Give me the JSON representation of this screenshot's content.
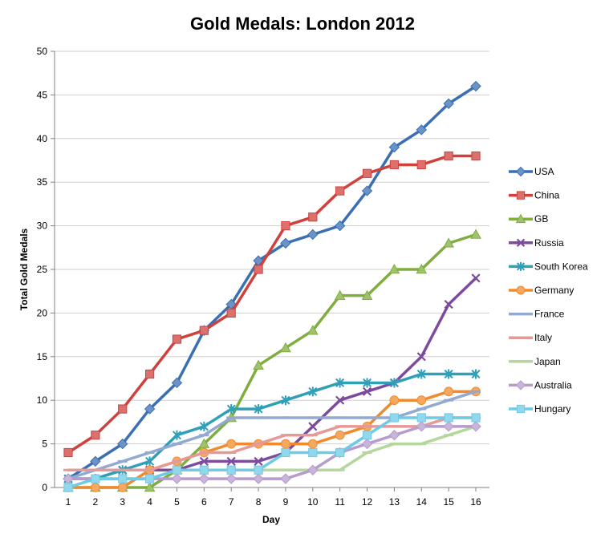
{
  "chart_data": {
    "type": "line",
    "title": "Gold Medals: London 2012",
    "xlabel": "Day",
    "ylabel": "Total Gold Medals",
    "x": [
      1,
      2,
      3,
      4,
      5,
      6,
      7,
      8,
      9,
      10,
      11,
      12,
      13,
      14,
      15,
      16
    ],
    "xlim": [
      1,
      16
    ],
    "ylim": [
      0,
      50
    ],
    "y_ticks": [
      0,
      5,
      10,
      15,
      20,
      25,
      30,
      35,
      40,
      45,
      50
    ],
    "grid": true,
    "legend_position": "right",
    "series": [
      {
        "name": "USA",
        "color": "#3a6fb3",
        "marker": "diamond",
        "values": [
          1,
          3,
          5,
          9,
          12,
          18,
          21,
          26,
          28,
          29,
          30,
          34,
          39,
          41,
          44,
          46
        ]
      },
      {
        "name": "China",
        "color": "#d0403c",
        "marker": "square",
        "values": [
          4,
          6,
          9,
          13,
          17,
          18,
          20,
          25,
          30,
          31,
          34,
          36,
          37,
          37,
          38,
          38
        ]
      },
      {
        "name": "GB",
        "color": "#7fad3f",
        "marker": "triangle",
        "values": [
          0,
          0,
          0,
          0,
          2,
          5,
          8,
          14,
          16,
          18,
          22,
          22,
          25,
          25,
          28,
          29
        ]
      },
      {
        "name": "Russia",
        "color": "#7d4b9c",
        "marker": "x",
        "values": [
          1,
          1,
          2,
          2,
          2,
          3,
          3,
          3,
          4,
          7,
          10,
          11,
          12,
          15,
          21,
          24
        ]
      },
      {
        "name": "South Korea",
        "color": "#2fa0b7",
        "marker": "star",
        "values": [
          1,
          1,
          2,
          3,
          6,
          7,
          9,
          9,
          10,
          11,
          12,
          12,
          12,
          13,
          13,
          13
        ]
      },
      {
        "name": "Germany",
        "color": "#f08b2d",
        "marker": "circle",
        "values": [
          0,
          0,
          0,
          2,
          3,
          4,
          5,
          5,
          5,
          5,
          6,
          7,
          10,
          10,
          11,
          11
        ]
      },
      {
        "name": "France",
        "color": "#93a9d2",
        "marker": "dash",
        "values": [
          1,
          2,
          3,
          4,
          5,
          6,
          8,
          8,
          8,
          8,
          8,
          8,
          8,
          9,
          10,
          11
        ]
      },
      {
        "name": "Italy",
        "color": "#e59a98",
        "marker": "dash",
        "values": [
          2,
          2,
          2,
          2,
          3,
          4,
          4,
          5,
          6,
          6,
          7,
          7,
          7,
          7,
          8,
          8
        ]
      },
      {
        "name": "Japan",
        "color": "#b5d79b",
        "marker": "dash",
        "values": [
          0,
          1,
          1,
          1,
          2,
          2,
          2,
          2,
          2,
          2,
          2,
          4,
          5,
          5,
          6,
          7
        ]
      },
      {
        "name": "Australia",
        "color": "#b79bcd",
        "marker": "diamond",
        "values": [
          1,
          1,
          1,
          1,
          1,
          1,
          1,
          1,
          1,
          2,
          4,
          5,
          6,
          7,
          7,
          7
        ]
      },
      {
        "name": "Hungary",
        "color": "#6ecbe6",
        "marker": "square",
        "values": [
          0,
          1,
          1,
          1,
          2,
          2,
          2,
          2,
          4,
          4,
          4,
          6,
          8,
          8,
          8,
          8
        ]
      }
    ]
  }
}
